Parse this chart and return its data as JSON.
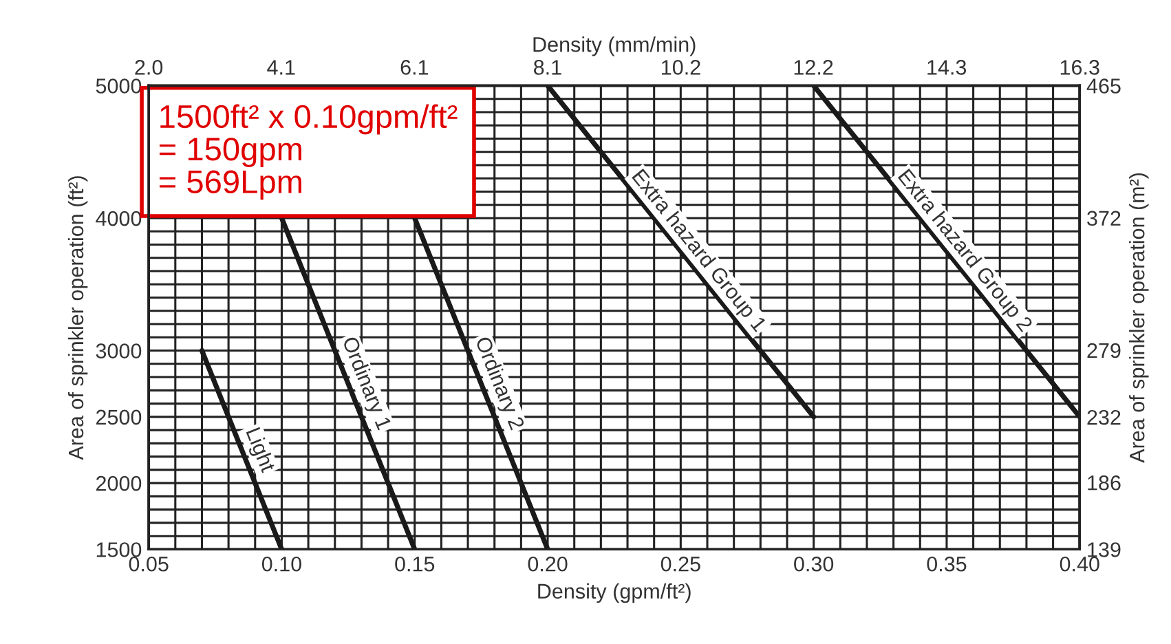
{
  "chart_data": {
    "type": "line",
    "xlabel": "Density (gpm/ft²)",
    "ylabel": "Area of sprinkler operation (ft²)",
    "y2label": "Area of sprinkler operation (m²)",
    "x2label": "Density (mm/min)",
    "xlim": [
      0.05,
      0.4
    ],
    "xticks": [
      {
        "value": 0.05,
        "label": "0.05"
      },
      {
        "value": 0.1,
        "label": "0.10"
      },
      {
        "value": 0.15,
        "label": "0.15"
      },
      {
        "value": 0.2,
        "label": "0.20"
      },
      {
        "value": 0.25,
        "label": "0.25"
      },
      {
        "value": 0.3,
        "label": "0.30"
      },
      {
        "value": 0.35,
        "label": "0.35"
      },
      {
        "value": 0.4,
        "label": "0.40"
      }
    ],
    "ylim": [
      1500,
      5000
    ],
    "yticks": [
      1500,
      2000,
      2500,
      3000,
      4000,
      5000
    ],
    "x2lim": [
      2.04,
      16.3
    ],
    "x2ticks": [
      {
        "value": 2.04,
        "label": "2.0"
      },
      {
        "value": 4.07,
        "label": "4.1"
      },
      {
        "value": 6.11,
        "label": "6.1"
      },
      {
        "value": 8.15,
        "label": "8.1"
      },
      {
        "value": 10.19,
        "label": "10.2"
      },
      {
        "value": 12.22,
        "label": "12.2"
      },
      {
        "value": 14.26,
        "label": "14.3"
      },
      {
        "value": 16.3,
        "label": "16.3"
      }
    ],
    "y2lim": [
      139,
      465
    ],
    "y2ticks": [
      139,
      186,
      232,
      279,
      372,
      465
    ],
    "grid": true,
    "marker": "none",
    "line_style": "solid",
    "legend": false,
    "series": [
      {
        "name": "Light",
        "color": "#1a1a1a",
        "x": [
          0.07,
          0.1
        ],
        "values": [
          3000,
          1500
        ]
      },
      {
        "name": "Ordinary 1",
        "color": "#1a1a1a",
        "x": [
          0.1,
          0.15
        ],
        "values": [
          4000,
          1500
        ]
      },
      {
        "name": "Ordinary 2",
        "color": "#1a1a1a",
        "x": [
          0.15,
          0.2
        ],
        "values": [
          4000,
          1500
        ]
      },
      {
        "name": "Extra hazard Group 1",
        "color": "#1a1a1a",
        "x": [
          0.2,
          0.3
        ],
        "values": [
          5000,
          2500
        ]
      },
      {
        "name": "Extra hazard Group 2",
        "color": "#1a1a1a",
        "x": [
          0.3,
          0.4
        ],
        "values": [
          5000,
          2500
        ]
      }
    ],
    "annotations": [
      "1500ft² x 0.10gpm/ft²\n= 150gpm\n= 569Lpm"
    ]
  }
}
